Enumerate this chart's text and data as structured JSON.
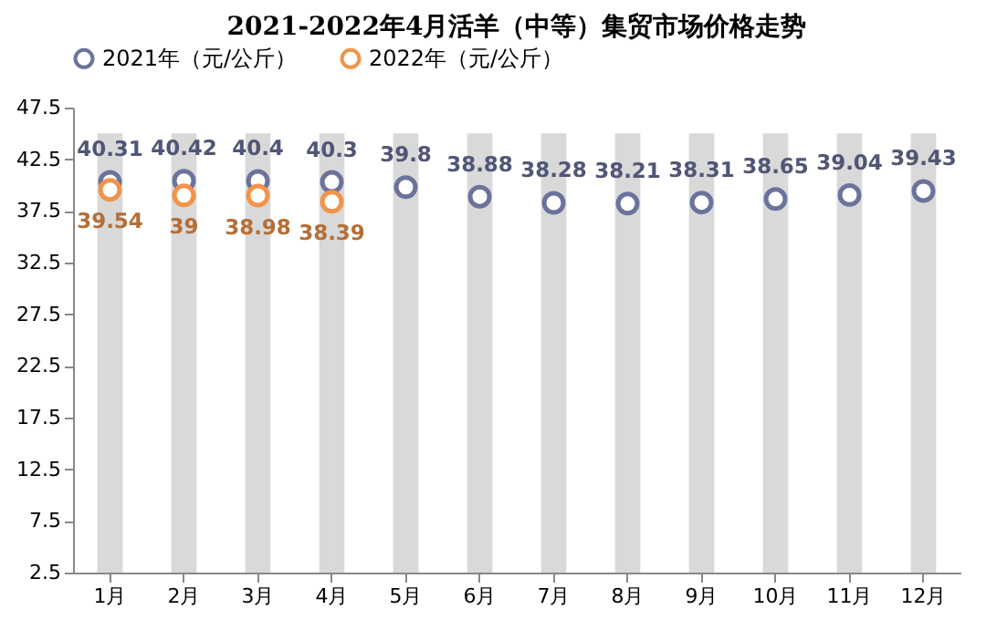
{
  "chart_data": {
    "type": "scatter",
    "title": "2021-2022年4月活羊（中等）集贸市场价格走势",
    "categories": [
      "1月",
      "2月",
      "3月",
      "4月",
      "5月",
      "6月",
      "7月",
      "8月",
      "9月",
      "10月",
      "11月",
      "12月"
    ],
    "series": [
      {
        "type": "bar",
        "color": "#d9d9d9",
        "values": [
          45,
          45,
          45,
          45,
          45,
          45,
          45,
          45,
          45,
          45,
          45,
          45
        ]
      },
      {
        "name": "2021年（元/公斤）",
        "color": "#6b739c",
        "values": [
          40.31,
          40.42,
          40.4,
          40.3,
          39.8,
          38.88,
          38.28,
          38.21,
          38.31,
          38.65,
          39.04,
          39.43
        ],
        "value_labels": [
          "40.31",
          "40.42",
          "40.4",
          "40.3",
          "39.8",
          "38.88",
          "38.28",
          "38.21",
          "38.31",
          "38.65",
          "39.04",
          "39.43"
        ]
      },
      {
        "name": "2022年（元/公斤）",
        "color": "#f0944a",
        "values": [
          39.54,
          39,
          38.98,
          38.39,
          null,
          null,
          null,
          null,
          null,
          null,
          null,
          null
        ],
        "value_labels": [
          "39.54",
          "39",
          "38.98",
          "38.39",
          null,
          null,
          null,
          null,
          null,
          null,
          null,
          null
        ]
      }
    ],
    "ylim": [
      2.5,
      47.5
    ],
    "yticks": [
      2.5,
      7.5,
      12.5,
      17.5,
      22.5,
      27.5,
      32.5,
      37.5,
      42.5,
      47.5
    ],
    "legend": "top",
    "marker": "circle",
    "grid": false
  }
}
